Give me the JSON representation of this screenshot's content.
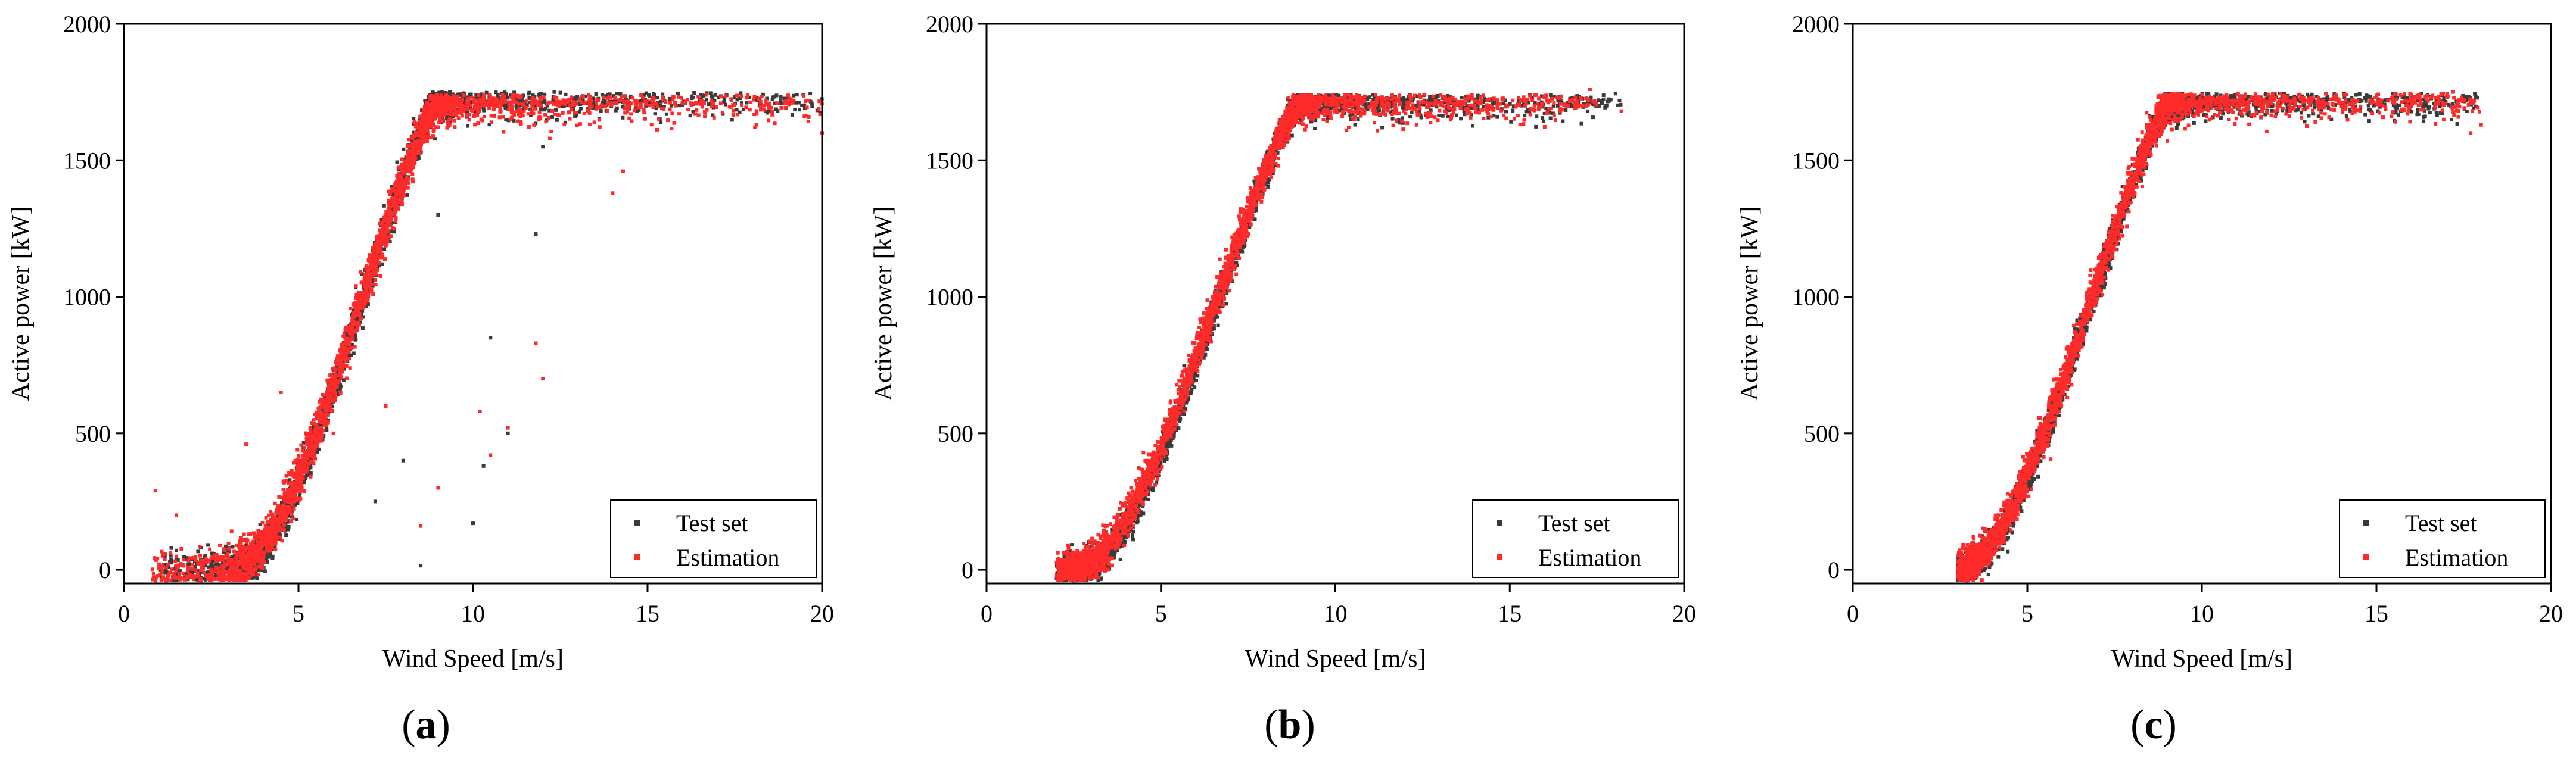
{
  "colors": {
    "test_set": "#3a3a3a",
    "estimation": "#ff2a2a",
    "axis": "#000000"
  },
  "chart_data": [
    {
      "type": "scatter",
      "panel": "(a)",
      "panel_letter": "a",
      "xlabel": "Wind Speed [m/s]",
      "ylabel": "Active power [kW]",
      "xlim": [
        0,
        20
      ],
      "ylim": [
        -50,
        2000
      ],
      "xticks": [
        0,
        5,
        10,
        15,
        20
      ],
      "yticks": [
        0,
        500,
        1000,
        1500,
        2000
      ],
      "legend": [
        "Test set",
        "Estimation"
      ],
      "legend_position": "bottom-right",
      "series": [
        {
          "name": "Test set",
          "x_range": [
            1.0,
            20.0
          ],
          "rated_power": 1720,
          "v_start": 3.1,
          "v_rated": 8.9,
          "noise": 35,
          "outliers": [
            [
              10.0,
              170
            ],
            [
              10.3,
              380
            ],
            [
              10.5,
              850
            ],
            [
              11.0,
              500
            ],
            [
              11.8,
              1230
            ],
            [
              8.5,
              15
            ],
            [
              9.0,
              1300
            ],
            [
              12.0,
              1550
            ],
            [
              7.2,
              250
            ],
            [
              8.0,
              400
            ]
          ]
        },
        {
          "name": "Estimation",
          "x_range": [
            0.8,
            20.0
          ],
          "rated_power": 1710,
          "v_start": 3.0,
          "v_rated": 8.9,
          "noise": 40,
          "outliers": [
            [
              0.9,
              290
            ],
            [
              1.5,
              200
            ],
            [
              3.5,
              460
            ],
            [
              4.5,
              650
            ],
            [
              6.0,
              500
            ],
            [
              7.5,
              600
            ],
            [
              8.5,
              160
            ],
            [
              9.0,
              300
            ],
            [
              10.2,
              580
            ],
            [
              10.5,
              420
            ],
            [
              11.0,
              520
            ],
            [
              11.8,
              830
            ],
            [
              12.0,
              700
            ],
            [
              14.0,
              1380
            ],
            [
              14.3,
              1460
            ],
            [
              12.2,
              1580
            ],
            [
              20.0,
              1600
            ]
          ]
        }
      ]
    },
    {
      "type": "scatter",
      "panel": "(b)",
      "panel_letter": "b",
      "xlabel": "Wind Speed [m/s]",
      "ylabel": "Active power [kW]",
      "xlim": [
        0,
        20
      ],
      "ylim": [
        -50,
        2000
      ],
      "xticks": [
        0,
        5,
        10,
        15,
        20
      ],
      "yticks": [
        0,
        500,
        1000,
        1500,
        2000
      ],
      "legend": [
        "Test set",
        "Estimation"
      ],
      "legend_position": "bottom-right",
      "series": [
        {
          "name": "Test set",
          "x_range": [
            2.0,
            18.2
          ],
          "rated_power": 1710,
          "v_start": 2.6,
          "v_rated": 8.9,
          "noise": 30,
          "outliers": []
        },
        {
          "name": "Estimation",
          "x_range": [
            2.0,
            17.5
          ],
          "rated_power": 1710,
          "v_start": 2.4,
          "v_rated": 8.9,
          "noise": 35,
          "outliers": [
            [
              18.2,
              1680
            ],
            [
              17.3,
              1760
            ]
          ]
        }
      ]
    },
    {
      "type": "scatter",
      "panel": "(c)",
      "panel_letter": "c",
      "xlabel": "Wind Speed [m/s]",
      "ylabel": "Active power [kW]",
      "xlim": [
        0,
        20
      ],
      "ylim": [
        -50,
        2000
      ],
      "xticks": [
        0,
        5,
        10,
        15,
        20
      ],
      "yticks": [
        0,
        500,
        1000,
        1500,
        2000
      ],
      "legend": [
        "Test set",
        "Estimation"
      ],
      "legend_position": "bottom-right",
      "series": [
        {
          "name": "Test set",
          "x_range": [
            3.0,
            18.0
          ],
          "rated_power": 1715,
          "v_start": 3.0,
          "v_rated": 9.0,
          "noise": 30,
          "outliers": []
        },
        {
          "name": "Estimation",
          "x_range": [
            3.0,
            18.0
          ],
          "rated_power": 1715,
          "v_start": 2.9,
          "v_rated": 9.0,
          "noise": 35,
          "outliers": [
            [
              17.7,
              1600
            ],
            [
              18.0,
              1630
            ],
            [
              17.2,
              1750
            ]
          ]
        }
      ]
    }
  ]
}
